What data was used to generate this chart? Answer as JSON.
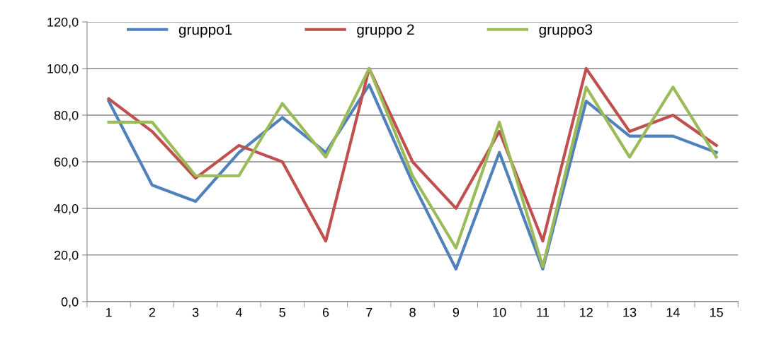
{
  "chart_data": {
    "type": "line",
    "categories": [
      "1",
      "2",
      "3",
      "4",
      "5",
      "6",
      "7",
      "8",
      "9",
      "10",
      "11",
      "12",
      "13",
      "14",
      "15"
    ],
    "series": [
      {
        "name": "gruppo1",
        "color": "#4f81bd",
        "values": [
          86,
          50,
          43,
          64,
          79,
          64,
          93,
          51,
          14,
          64,
          14,
          86,
          71,
          71,
          64
        ]
      },
      {
        "name": "gruppo 2",
        "color": "#c0504d",
        "values": [
          87,
          73,
          53,
          67,
          60,
          26,
          100,
          60,
          40,
          73,
          26,
          100,
          73,
          80,
          67
        ]
      },
      {
        "name": "gruppo3",
        "color": "#9bbb59",
        "values": [
          77,
          77,
          54,
          54,
          85,
          62,
          100,
          54,
          23,
          77,
          15,
          92,
          62,
          92,
          62
        ]
      }
    ],
    "ylim": [
      0,
      120
    ],
    "yticks": [
      {
        "value": 0,
        "label": "0,0"
      },
      {
        "value": 20,
        "label": "20,0"
      },
      {
        "value": 40,
        "label": "40,0"
      },
      {
        "value": 60,
        "label": "60,0"
      },
      {
        "value": 80,
        "label": "80,0"
      },
      {
        "value": 100,
        "label": "100,0"
      },
      {
        "value": 120,
        "label": "120,0"
      }
    ],
    "grid": "y",
    "legend": "top",
    "marker": "none",
    "line_style": "solid"
  }
}
